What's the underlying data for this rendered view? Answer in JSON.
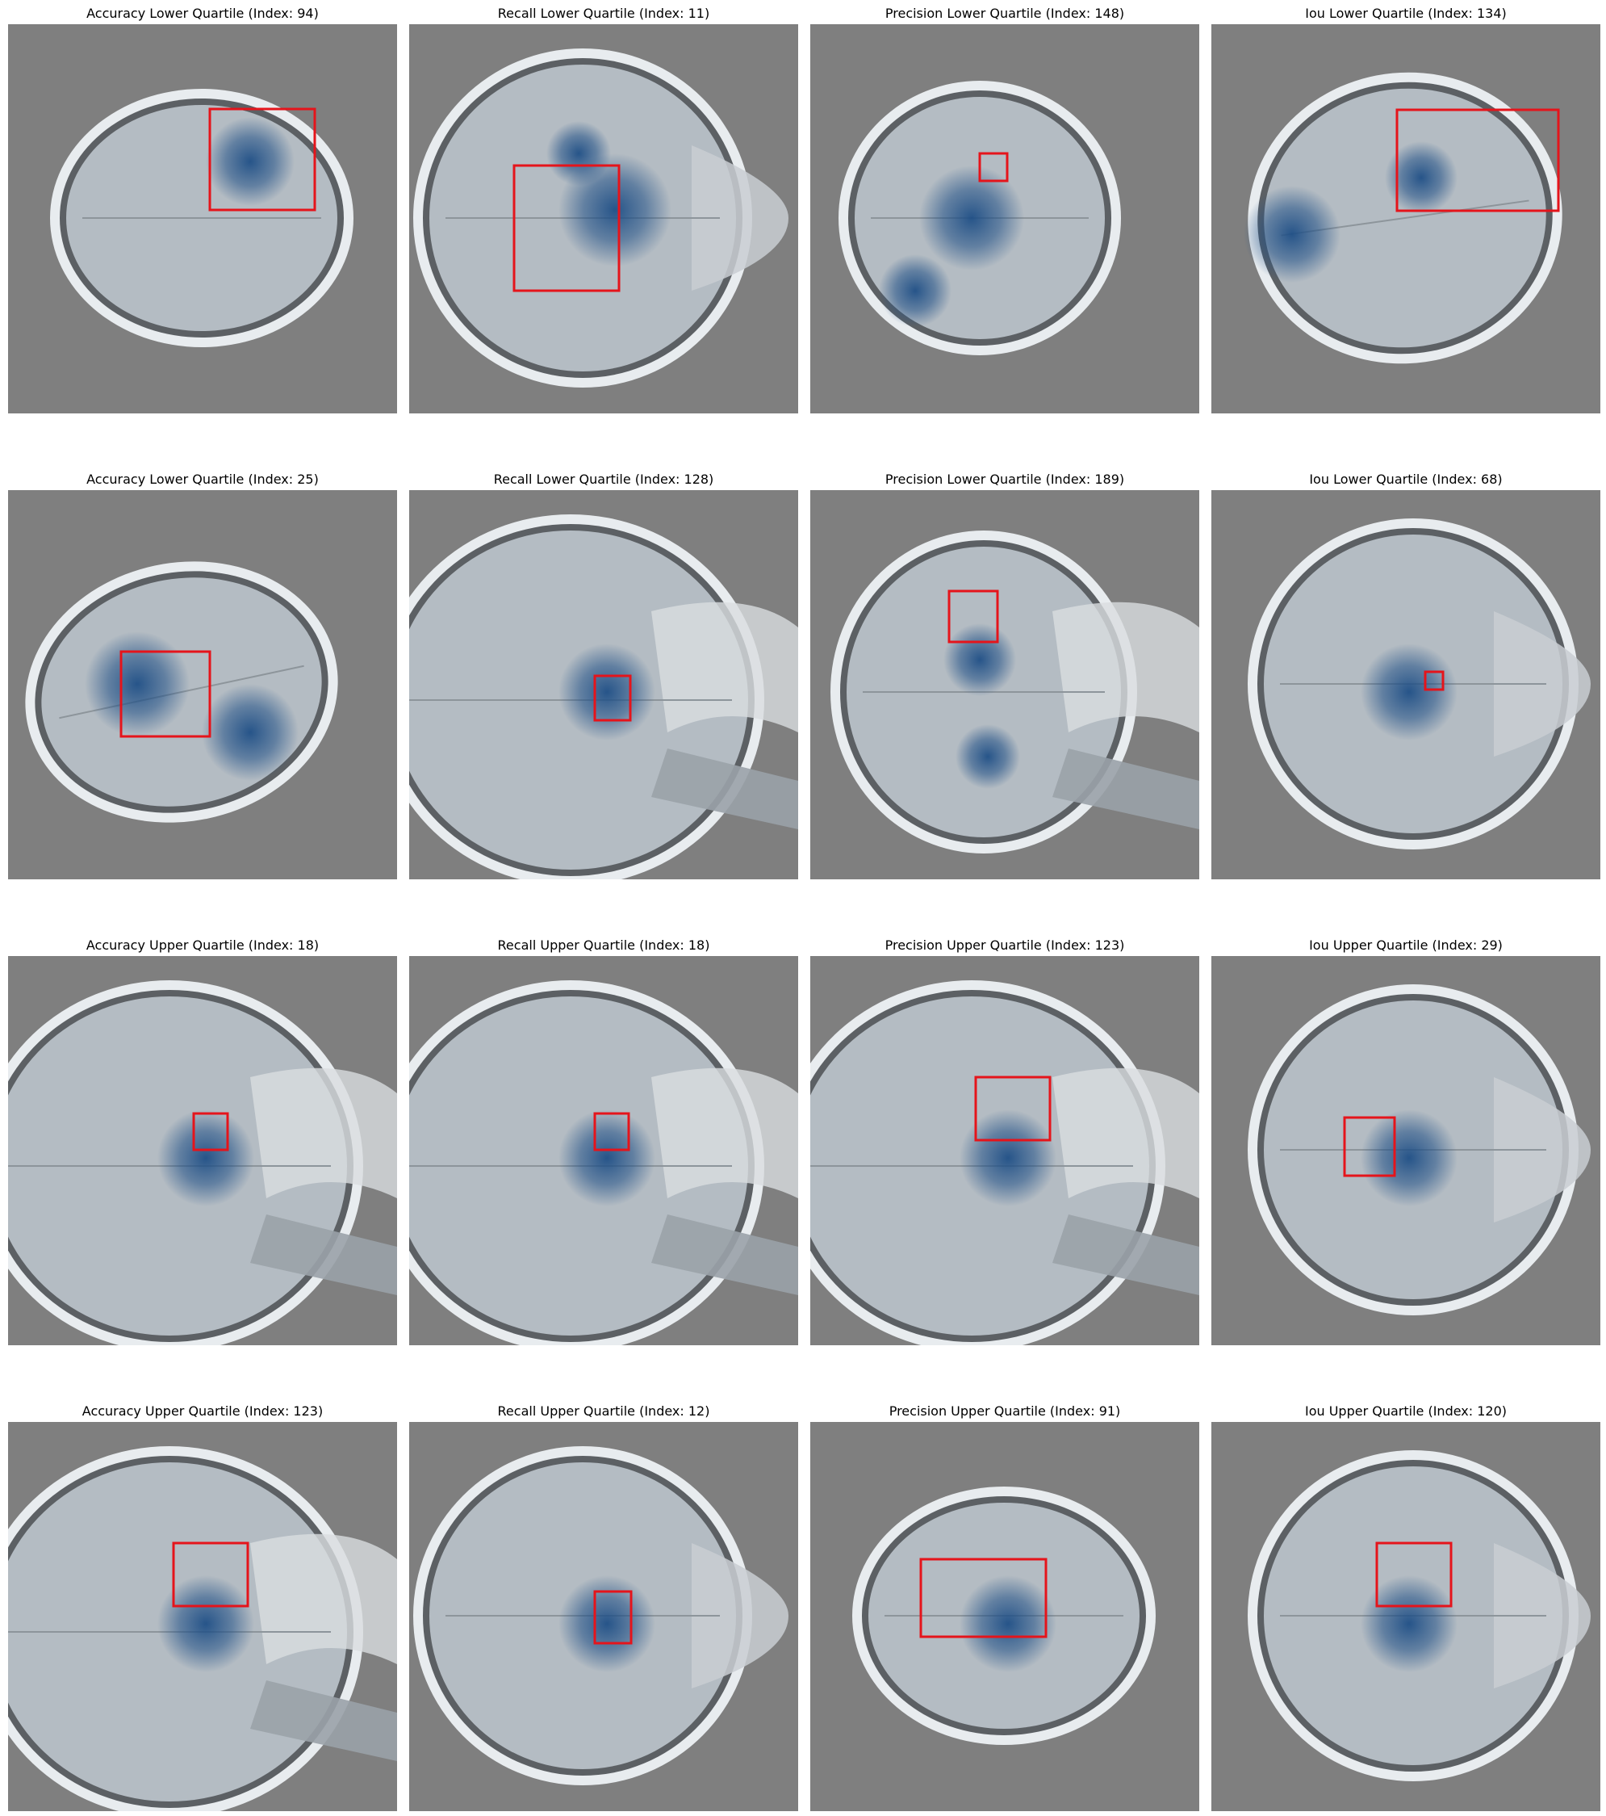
{
  "colors": {
    "background": "#7f7f7f",
    "box": "#e5141b",
    "heat": "#1f4f86",
    "skull": "#e8ecef",
    "tissue": "#b4bcc3"
  },
  "panels": [
    {
      "title": "Accuracy Lower Quartile (Index: 94)",
      "view": "axial-small",
      "heat": "upper-right",
      "box": "large-upper-right"
    },
    {
      "title": "Recall Lower Quartile (Index: 11)",
      "view": "axial-face",
      "heat": "center-right",
      "box": "large-center"
    },
    {
      "title": "Precision Lower Quartile (Index: 148)",
      "view": "axial-round",
      "heat": "left-center",
      "box": "tiny-center"
    },
    {
      "title": "Iou Lower Quartile (Index: 134)",
      "view": "axial-oval",
      "heat": "left-spread",
      "box": "large-upper-right"
    },
    {
      "title": "Accuracy Lower Quartile (Index: 25)",
      "view": "axial-tilted",
      "heat": "center-spread",
      "box": "medium-center-left"
    },
    {
      "title": "Recall Lower Quartile (Index: 128)",
      "view": "sagittal",
      "heat": "center",
      "box": "small-center"
    },
    {
      "title": "Precision Lower Quartile (Index: 189)",
      "view": "sagittal-oval",
      "heat": "vertical",
      "box": "small-upper"
    },
    {
      "title": "Iou Lower Quartile (Index: 68)",
      "view": "axial-large",
      "heat": "center",
      "box": "tiny-center"
    },
    {
      "title": "Accuracy Upper Quartile (Index: 18)",
      "view": "sagittal",
      "heat": "center",
      "box": "small-center"
    },
    {
      "title": "Recall Upper Quartile (Index: 18)",
      "view": "sagittal",
      "heat": "center",
      "box": "small-center"
    },
    {
      "title": "Precision Upper Quartile (Index: 123)",
      "view": "sagittal",
      "heat": "center",
      "box": "medium-center"
    },
    {
      "title": "Iou Upper Quartile (Index: 29)",
      "view": "axial-large",
      "heat": "center",
      "box": "medium-center"
    },
    {
      "title": "Accuracy Upper Quartile (Index: 123)",
      "view": "sagittal",
      "heat": "center",
      "box": "medium-center"
    },
    {
      "title": "Recall Upper Quartile (Index: 12)",
      "view": "axial-face",
      "heat": "center",
      "box": "small-center-tall"
    },
    {
      "title": "Precision Upper Quartile (Index: 91)",
      "view": "axial-small",
      "heat": "center",
      "box": "wide-center"
    },
    {
      "title": "Iou Upper Quartile (Index: 120)",
      "view": "axial-large",
      "heat": "center",
      "box": "medium-center"
    }
  ]
}
